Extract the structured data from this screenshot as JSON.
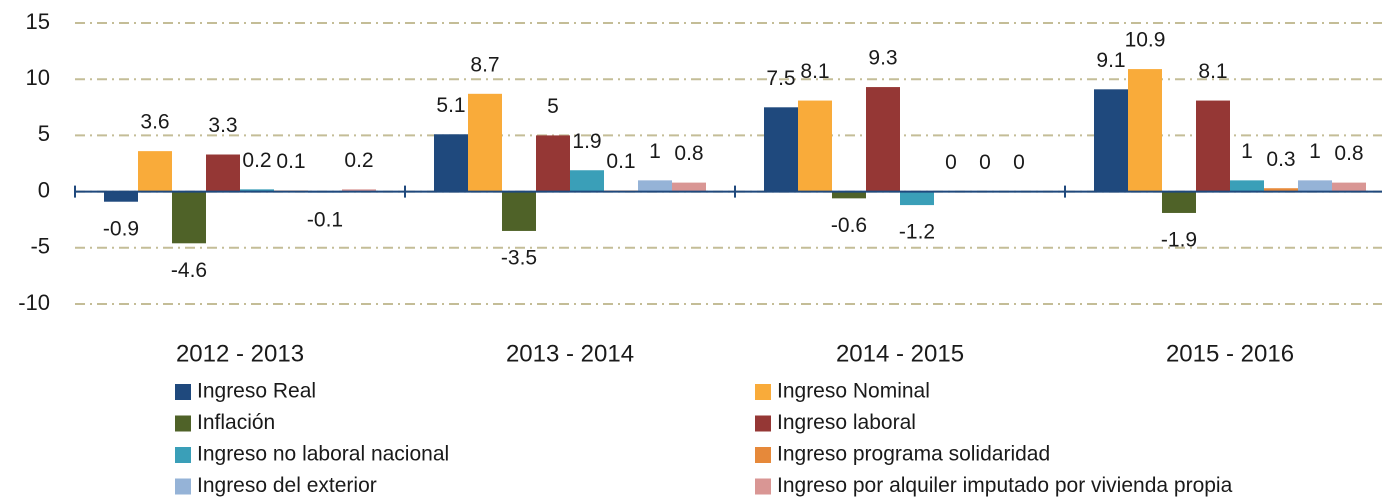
{
  "chart_data": {
    "type": "bar",
    "categories": [
      "2012 - 2013",
      "2013 - 2014",
      "2014 - 2015",
      "2015 - 2016"
    ],
    "series": [
      {
        "name": "Ingreso Real",
        "color": "#1f497d",
        "values": [
          -0.9,
          5.1,
          7.5,
          9.1
        ]
      },
      {
        "name": "Ingreso Nominal",
        "color": "#f9ab3a",
        "values": [
          3.6,
          8.7,
          8.1,
          10.9
        ]
      },
      {
        "name": "Inflación",
        "color": "#4f6228",
        "values": [
          -4.6,
          -3.5,
          -0.6,
          -1.9
        ]
      },
      {
        "name": "Ingreso laboral",
        "color": "#953735",
        "values": [
          3.3,
          5,
          9.3,
          8.1
        ]
      },
      {
        "name": "Ingreso no laboral nacional",
        "color": "#3a9fb8",
        "values": [
          0.2,
          1.9,
          -1.2,
          1
        ]
      },
      {
        "name": "Ingreso programa solidaridad",
        "color": "#e6893a",
        "values": [
          0.1,
          0.1,
          0,
          0.3
        ]
      },
      {
        "name": "Ingreso del exterior",
        "color": "#95b3d7",
        "values": [
          -0.1,
          1,
          0,
          1
        ]
      },
      {
        "name": "Ingreso por alquiler imputado por vivienda propia",
        "color": "#d99694",
        "values": [
          0.2,
          0.8,
          0,
          0.8
        ]
      }
    ],
    "ylim": [
      -10,
      15
    ],
    "yticks": [
      -10,
      -5,
      0,
      5,
      10,
      15
    ],
    "grid": true,
    "legend": "bottom"
  }
}
